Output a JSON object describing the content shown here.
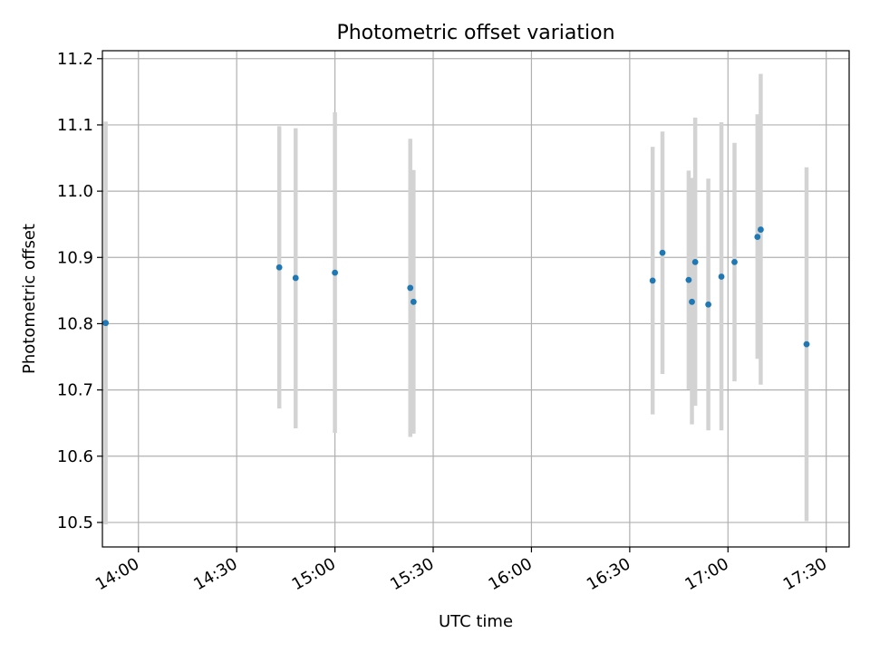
{
  "chart_data": {
    "type": "scatter",
    "title": "Photometric offset variation",
    "xlabel": "UTC time",
    "ylabel": "Photometric offset",
    "x_tick_labels": [
      "14:00",
      "14:30",
      "15:00",
      "15:30",
      "16:00",
      "16:30",
      "17:00",
      "17:30"
    ],
    "y_tick_labels": [
      "10.5",
      "10.6",
      "10.7",
      "10.8",
      "10.9",
      "11.0",
      "11.1",
      "11.2"
    ],
    "xlim": [
      "13:49",
      "17:37"
    ],
    "ylim": [
      10.463,
      11.212
    ],
    "grid": true,
    "colors": {
      "point": "#1f77b4",
      "errorbar": "#d3d3d3",
      "grid": "#b0b0b0"
    },
    "points": [
      {
        "x": "13:50",
        "y": 10.801,
        "ymin": 10.497,
        "ymax": 11.105
      },
      {
        "x": "14:43",
        "y": 10.885,
        "ymin": 10.672,
        "ymax": 11.098
      },
      {
        "x": "14:48",
        "y": 10.869,
        "ymin": 10.642,
        "ymax": 11.095
      },
      {
        "x": "15:00",
        "y": 10.877,
        "ymin": 10.635,
        "ymax": 11.119
      },
      {
        "x": "15:23",
        "y": 10.854,
        "ymin": 10.629,
        "ymax": 11.079
      },
      {
        "x": "15:24",
        "y": 10.833,
        "ymin": 10.634,
        "ymax": 11.032
      },
      {
        "x": "16:37",
        "y": 10.865,
        "ymin": 10.663,
        "ymax": 11.067
      },
      {
        "x": "16:40",
        "y": 10.907,
        "ymin": 10.724,
        "ymax": 11.09
      },
      {
        "x": "16:48",
        "y": 10.866,
        "ymin": 10.701,
        "ymax": 11.031
      },
      {
        "x": "16:49",
        "y": 10.833,
        "ymin": 10.648,
        "ymax": 11.02
      },
      {
        "x": "16:50",
        "y": 10.893,
        "ymin": 10.676,
        "ymax": 11.111
      },
      {
        "x": "16:54",
        "y": 10.829,
        "ymin": 10.639,
        "ymax": 11.019
      },
      {
        "x": "16:58",
        "y": 10.871,
        "ymin": 10.639,
        "ymax": 11.104
      },
      {
        "x": "17:02",
        "y": 10.893,
        "ymin": 10.713,
        "ymax": 11.073
      },
      {
        "x": "17:09",
        "y": 10.931,
        "ymin": 10.747,
        "ymax": 11.116
      },
      {
        "x": "17:10",
        "y": 10.942,
        "ymin": 10.708,
        "ymax": 11.177
      },
      {
        "x": "17:24",
        "y": 10.769,
        "ymin": 10.502,
        "ymax": 11.036
      }
    ]
  }
}
